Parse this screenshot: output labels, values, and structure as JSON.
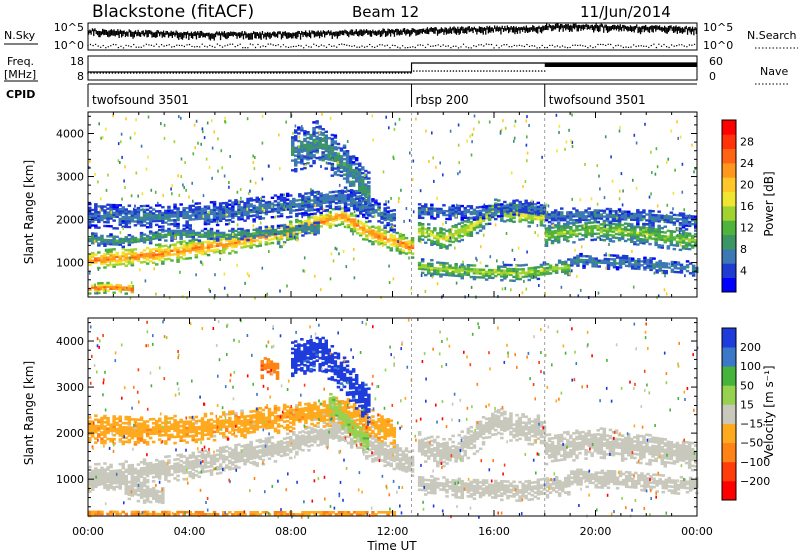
{
  "header": {
    "station": "Blackstone (fitACF)",
    "beam": "Beam 12",
    "date": "11/Jun/2014"
  },
  "strip": {
    "nsky_label": "N.Sky",
    "nsearch_label": "N.Search",
    "nsky_tick_top": "10^5",
    "nsky_tick_bottom": "10^0",
    "freq_label_top": "Freq.",
    "freq_label_bottom": "[MHz]",
    "freq_ticks": [
      "18",
      "8"
    ],
    "nave_label": "Nave",
    "nave_ticks": [
      "60",
      "0"
    ],
    "cpid_label": "CPID",
    "cpid_segments": [
      {
        "name": "twofsound 3501",
        "start_h": 0,
        "end_h": 12.75
      },
      {
        "name": "rbsp 200",
        "start_h": 12.75,
        "end_h": 18
      },
      {
        "name": "twofsound 3501",
        "start_h": 18,
        "end_h": 24
      }
    ]
  },
  "panels": {
    "power": {
      "ylabel": "Slant Range [km]",
      "cbar_label": "Power [dB]"
    },
    "velocity": {
      "ylabel": "Slant Range [km]",
      "cbar_label": "Velocity [m s⁻¹]"
    }
  },
  "chart_data": [
    {
      "type": "heatmap",
      "quantity": "power",
      "xlabel": "Time UT",
      "ylabel": "Slant Range [km]",
      "xlim_hours": [
        0,
        24
      ],
      "x_ticks": [
        "00:00",
        "04:00",
        "08:00",
        "12:00",
        "16:00",
        "20:00",
        "00:00"
      ],
      "ylim_km": [
        200,
        4500
      ],
      "y_ticks": [
        1000,
        2000,
        3000,
        4000
      ],
      "colorbar": {
        "label": "Power [dB]",
        "ticks": [
          4,
          8,
          12,
          16,
          20,
          24,
          28
        ],
        "range": [
          0,
          32
        ],
        "colors": [
          "#0000ff",
          "#1e3cd2",
          "#3c78b4",
          "#3c9664",
          "#50b43c",
          "#a0d232",
          "#f0e632",
          "#ffc828",
          "#ff961e",
          "#ff6414",
          "#ff320a",
          "#ff0000"
        ]
      },
      "bands": [
        {
          "t": [
            0,
            2,
            4,
            6,
            8,
            10,
            11,
            12.75
          ],
          "r": [
            1050,
            1150,
            1300,
            1500,
            1750,
            2100,
            1700,
            1350
          ],
          "w": 240,
          "p": 24
        },
        {
          "t": [
            0,
            2,
            4,
            6,
            8,
            10,
            12
          ],
          "r": [
            2100,
            2050,
            2100,
            2200,
            2350,
            2500,
            2000
          ],
          "w": 280,
          "p": 7
        },
        {
          "t": [
            0,
            1.5,
            3,
            6,
            9
          ],
          "r": [
            1550,
            1500,
            1650,
            1650,
            1800
          ],
          "w": 140,
          "p": 10
        },
        {
          "t": [
            8,
            9,
            10,
            11
          ],
          "r": [
            3600,
            3800,
            3300,
            2600
          ],
          "w": 500,
          "p": 9
        },
        {
          "t": [
            13,
            14,
            15,
            16,
            17,
            18
          ],
          "r": [
            1750,
            1550,
            1800,
            2250,
            2100,
            2050
          ],
          "w": 240,
          "p": 17
        },
        {
          "t": [
            13,
            15,
            17,
            18
          ],
          "r": [
            2200,
            2150,
            2300,
            2200
          ],
          "w": 160,
          "p": 7
        },
        {
          "t": [
            18,
            20,
            22,
            24
          ],
          "r": [
            1650,
            1800,
            1650,
            1500
          ],
          "w": 260,
          "p": 14
        },
        {
          "t": [
            18,
            20,
            22,
            24
          ],
          "r": [
            2100,
            2100,
            2050,
            1950
          ],
          "w": 160,
          "p": 7
        },
        {
          "t": [
            13,
            15,
            17,
            19
          ],
          "r": [
            900,
            800,
            750,
            900
          ],
          "w": 180,
          "p": 15
        },
        {
          "t": [
            19,
            21,
            23,
            24
          ],
          "r": [
            1050,
            1000,
            900,
            850
          ],
          "w": 160,
          "p": 8
        },
        {
          "t": [
            0,
            0.6,
            1,
            1.8
          ],
          "r": [
            400,
            420,
            420,
            380
          ],
          "w": 120,
          "p": 27
        }
      ]
    },
    {
      "type": "heatmap",
      "quantity": "velocity",
      "xlabel": "Time UT",
      "ylabel": "Slant Range [km]",
      "xlim_hours": [
        0,
        24
      ],
      "x_ticks": [
        "00:00",
        "04:00",
        "08:00",
        "12:00",
        "16:00",
        "20:00",
        "00:00"
      ],
      "ylim_km": [
        200,
        4500
      ],
      "y_ticks": [
        1000,
        2000,
        3000,
        4000
      ],
      "colorbar": {
        "label": "Velocity [m s⁻¹]",
        "ticks": [
          200,
          100,
          50,
          15,
          -15,
          -50,
          -100,
          -200
        ],
        "range": [
          -250,
          250
        ],
        "colors": [
          "#ff0000",
          "#ff3c0a",
          "#ff8214",
          "#ffaa1e",
          "#c8c8bc",
          "#96d250",
          "#46b43c",
          "#3c78c8",
          "#1e3cdc"
        ]
      },
      "bands": [
        {
          "t": [
            0,
            2,
            4,
            6,
            8,
            10,
            11,
            12.75
          ],
          "r": [
            1050,
            1150,
            1300,
            1500,
            1750,
            2100,
            1700,
            1350
          ],
          "w": 280,
          "v": 0
        },
        {
          "t": [
            0,
            2,
            4,
            6,
            8,
            10,
            12
          ],
          "r": [
            2100,
            2050,
            2100,
            2200,
            2350,
            2500,
            2000
          ],
          "w": 300,
          "v": -60
        },
        {
          "t": [
            8,
            9,
            10,
            11
          ],
          "r": [
            3600,
            3800,
            3300,
            2600
          ],
          "w": 400,
          "v": 220
        },
        {
          "t": [
            9.5,
            10,
            10.5,
            11
          ],
          "r": [
            2600,
            2300,
            2000,
            1800
          ],
          "w": 250,
          "v": 60
        },
        {
          "t": [
            13,
            14,
            15,
            16,
            17,
            18
          ],
          "r": [
            1750,
            1550,
            1800,
            2250,
            2100,
            2050
          ],
          "w": 320,
          "v": 0
        },
        {
          "t": [
            18,
            20,
            22,
            24
          ],
          "r": [
            1650,
            1800,
            1650,
            1500
          ],
          "w": 320,
          "v": 0
        },
        {
          "t": [
            13,
            15,
            17,
            19
          ],
          "r": [
            900,
            800,
            750,
            900
          ],
          "w": 220,
          "v": 0
        },
        {
          "t": [
            19,
            21,
            23,
            24
          ],
          "r": [
            1050,
            1000,
            900,
            850
          ],
          "w": 200,
          "v": 0
        },
        {
          "t": [
            0,
            0.8,
            1.5,
            3
          ],
          "r": [
            950,
            1000,
            800,
            600
          ],
          "w": 220,
          "v": 0
        },
        {
          "t": [
            0,
            6,
            12
          ],
          "r": [
            260,
            250,
            250
          ],
          "w": 60,
          "v": -80
        },
        {
          "t": [
            6.8,
            7,
            7.5
          ],
          "r": [
            3400,
            3500,
            3300
          ],
          "w": 200,
          "v": -120
        }
      ]
    }
  ]
}
